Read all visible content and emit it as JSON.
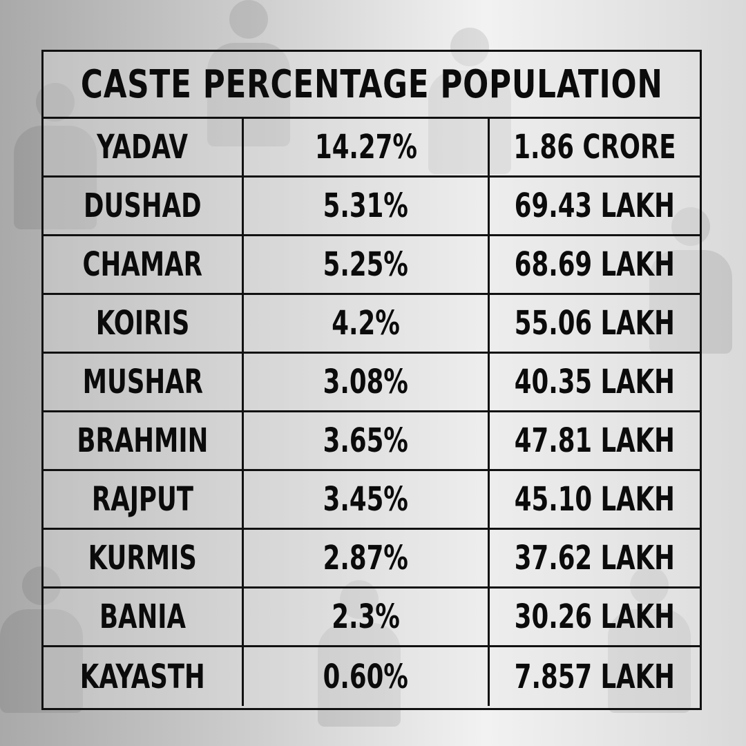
{
  "table": {
    "title": "CASTE PERCENTAGE POPULATION",
    "rows": [
      {
        "caste": "YADAV",
        "percentage": "14.27%",
        "population": "1.86 CRORE"
      },
      {
        "caste": "DUSHAD",
        "percentage": "5.31%",
        "population": "69.43 LAKH"
      },
      {
        "caste": "CHAMAR",
        "percentage": "5.25%",
        "population": "68.69 LAKH"
      },
      {
        "caste": "KOIRIS",
        "percentage": "4.2%",
        "population": "55.06 LAKH"
      },
      {
        "caste": "MUSHAR",
        "percentage": "3.08%",
        "population": "40.35 LAKH"
      },
      {
        "caste": "BRAHMIN",
        "percentage": "3.65%",
        "population": "47.81 LAKH"
      },
      {
        "caste": "RAJPUT",
        "percentage": "3.45%",
        "population": "45.10 LAKH"
      },
      {
        "caste": "KURMIS",
        "percentage": "2.87%",
        "population": "37.62 LAKH"
      },
      {
        "caste": "BANIA",
        "percentage": "2.3%",
        "population": "30.26 LAKH"
      },
      {
        "caste": "KAYASTH",
        "percentage": "0.60%",
        "population": "7.857 LAKH"
      }
    ]
  },
  "background": {
    "icon": "people-silhouette-icon",
    "colors": {
      "light": "#f2f2f2",
      "dark": "#a9a9a9",
      "ink": "#0b0b0b"
    }
  }
}
